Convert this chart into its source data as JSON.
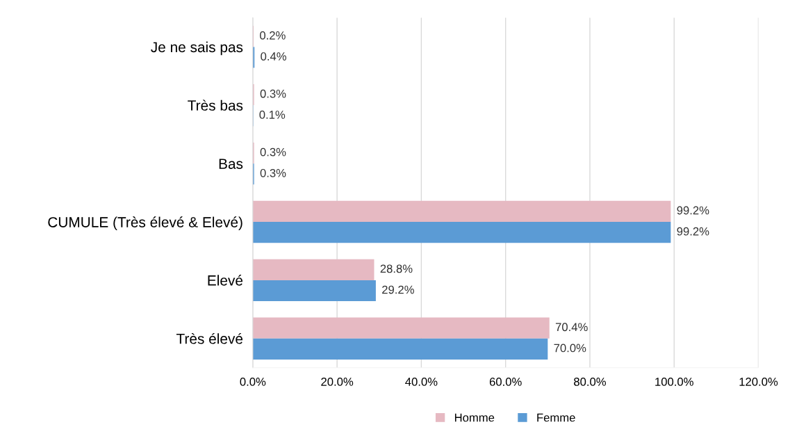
{
  "chart_data": {
    "type": "bar",
    "orientation": "horizontal",
    "categories": [
      "Je ne sais pas",
      "Très bas",
      "Bas",
      "CUMULE (Très élevé & Elevé)",
      "Elevé",
      "Très élevé"
    ],
    "series": [
      {
        "name": "Homme",
        "color": "#e6b9c2",
        "values": [
          0.2,
          0.3,
          0.3,
          99.2,
          28.8,
          70.4
        ],
        "value_labels": [
          "0.2%",
          "0.3%",
          "0.3%",
          "99.2%",
          "28.8%",
          "70.4%"
        ]
      },
      {
        "name": "Femme",
        "color": "#5b9bd5",
        "values": [
          0.4,
          0.1,
          0.3,
          99.2,
          29.2,
          70.0
        ],
        "value_labels": [
          "0.4%",
          "0.1%",
          "0.3%",
          "99.2%",
          "29.2%",
          "70.0%"
        ]
      }
    ],
    "xlim": [
      0,
      120
    ],
    "xticks": [
      {
        "value": 0,
        "label": "0.0%"
      },
      {
        "value": 20,
        "label": "20.0%"
      },
      {
        "value": 40,
        "label": "40.0%"
      },
      {
        "value": 60,
        "label": "60.0%"
      },
      {
        "value": 80,
        "label": "80.0%"
      },
      {
        "value": 100,
        "label": "100.0%"
      },
      {
        "value": 120,
        "label": "120.0%"
      }
    ],
    "grid": "x",
    "legend": "bottom"
  }
}
